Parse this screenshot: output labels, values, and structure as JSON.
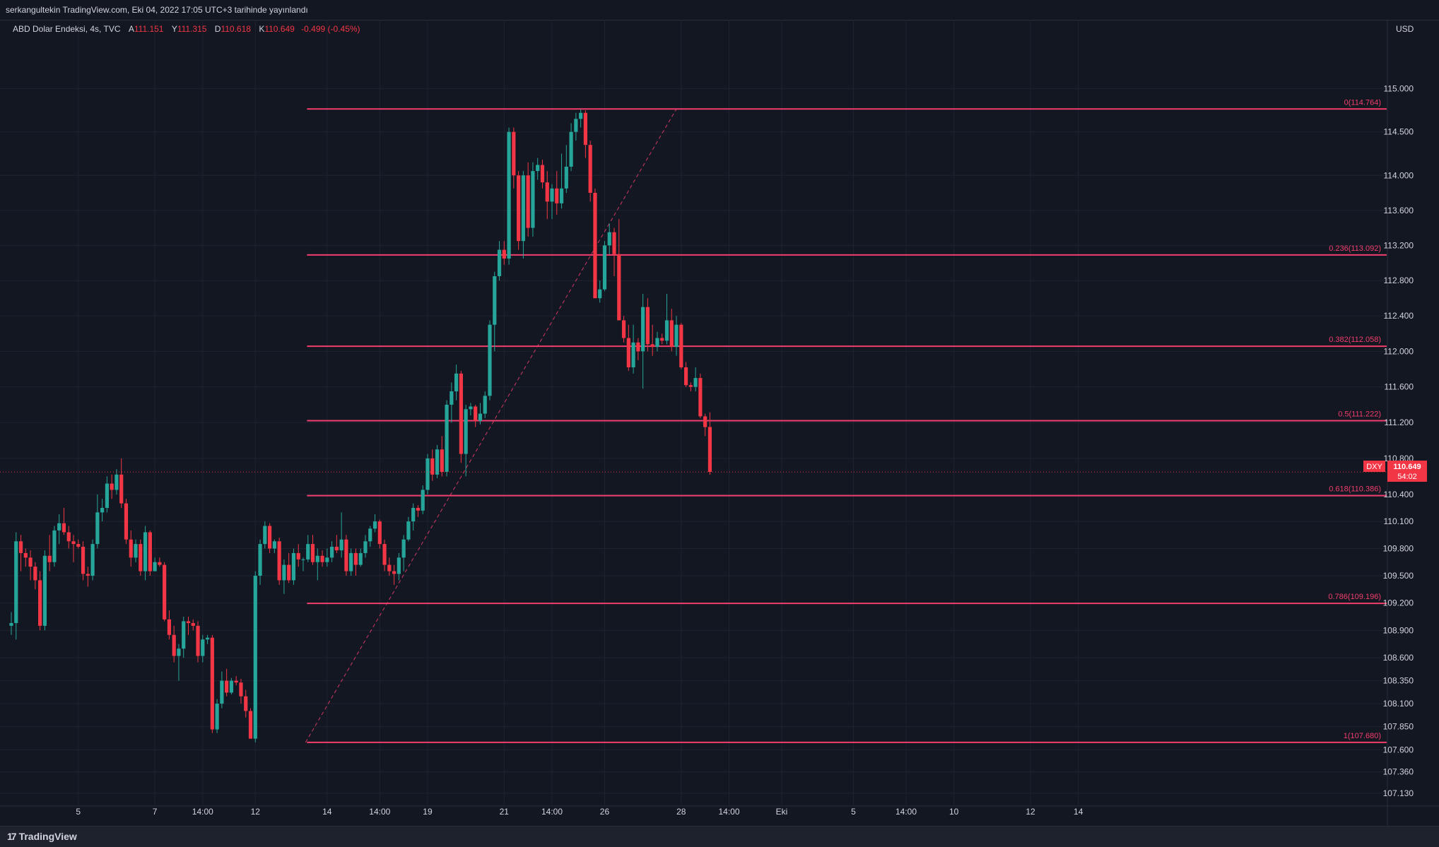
{
  "header": {
    "publication": "serkangultekin TradingView.com, Eki 04, 2022 17:05 UTC+3 tarihinde yayınlandı"
  },
  "legend": {
    "symbol": "ABD Dolar Endeksi, 4s, TVC",
    "open_label": "A",
    "open": "111.151",
    "high_label": "Y",
    "high": "111.315",
    "low_label": "D",
    "low": "110.618",
    "close_label": "K",
    "close": "110.649",
    "change": "-0.499 (-0.45%)"
  },
  "currency": "USD",
  "price_tag": {
    "ticker": "DXY",
    "price": "110.649",
    "countdown": "54:02"
  },
  "footer": {
    "brand": "TradingView",
    "logo_icon": "tradingview-logo-icon"
  },
  "colors": {
    "background": "#131722",
    "up": "#26a69a",
    "down": "#f23645",
    "fib": "#f23e6d",
    "grid": "#1f2330"
  },
  "chart_data": {
    "type": "candlestick",
    "title": "ABD Dolar Endeksi",
    "timeframe": "4s",
    "ylim": [
      107.0,
      115.7
    ],
    "y_scale": "log",
    "grid": true,
    "y_ticks": [
      "115.000",
      "114.500",
      "114.000",
      "113.600",
      "113.200",
      "112.800",
      "112.400",
      "112.000",
      "111.600",
      "111.200",
      "110.800",
      "110.400",
      "110.100",
      "109.800",
      "109.500",
      "109.200",
      "108.900",
      "108.600",
      "108.350",
      "108.100",
      "107.850",
      "107.600",
      "107.360",
      "107.130"
    ],
    "x_ticks": [
      {
        "i": 14,
        "label": "5"
      },
      {
        "i": 30,
        "label": "7"
      },
      {
        "i": 40,
        "label": "14:00"
      },
      {
        "i": 51,
        "label": "12"
      },
      {
        "i": 66,
        "label": "14"
      },
      {
        "i": 77,
        "label": "14:00"
      },
      {
        "i": 87,
        "label": "19"
      },
      {
        "i": 103,
        "label": "21"
      },
      {
        "i": 113,
        "label": "14:00"
      },
      {
        "i": 124,
        "label": "26"
      },
      {
        "i": 140,
        "label": "28"
      },
      {
        "i": 150,
        "label": "14:00"
      },
      {
        "i": 161,
        "label": "Eki"
      },
      {
        "i": 176,
        "label": "5"
      },
      {
        "i": 187,
        "label": "14:00"
      },
      {
        "i": 197,
        "label": "10"
      },
      {
        "i": 213,
        "label": "12"
      },
      {
        "i": 223,
        "label": "14"
      }
    ],
    "fibonacci": {
      "from_index": 61.5,
      "to_index": 139,
      "high": 114.764,
      "low": 107.68,
      "levels": [
        {
          "ratio": "0",
          "price": 114.764
        },
        {
          "ratio": "0.236",
          "price": 113.092
        },
        {
          "ratio": "0.382",
          "price": 112.058
        },
        {
          "ratio": "0.5",
          "price": 111.222
        },
        {
          "ratio": "0.618",
          "price": 110.386
        },
        {
          "ratio": "0.786",
          "price": 109.196
        },
        {
          "ratio": "1",
          "price": 107.68
        }
      ]
    },
    "ohlc": [
      [
        108.95,
        109.1,
        108.85,
        108.98
      ],
      [
        108.98,
        109.98,
        108.8,
        109.88
      ],
      [
        109.88,
        109.95,
        109.55,
        109.75
      ],
      [
        109.75,
        109.8,
        109.6,
        109.7
      ],
      [
        109.7,
        109.78,
        109.45,
        109.6
      ],
      [
        109.6,
        109.65,
        109.35,
        109.45
      ],
      [
        109.45,
        109.55,
        108.9,
        108.95
      ],
      [
        108.95,
        109.78,
        108.9,
        109.72
      ],
      [
        109.72,
        109.95,
        109.55,
        109.65
      ],
      [
        109.65,
        110.05,
        109.6,
        110.0
      ],
      [
        110.0,
        110.18,
        109.85,
        110.08
      ],
      [
        110.08,
        110.25,
        109.95,
        109.98
      ],
      [
        109.98,
        110.05,
        109.8,
        109.88
      ],
      [
        109.88,
        109.95,
        109.65,
        109.85
      ],
      [
        109.85,
        109.9,
        109.8,
        109.82
      ],
      [
        109.82,
        109.88,
        109.45,
        109.52
      ],
      [
        109.52,
        109.6,
        109.38,
        109.5
      ],
      [
        109.5,
        109.9,
        109.45,
        109.85
      ],
      [
        109.85,
        110.4,
        109.8,
        110.2
      ],
      [
        110.2,
        110.35,
        110.1,
        110.25
      ],
      [
        110.25,
        110.6,
        110.2,
        110.52
      ],
      [
        110.52,
        110.62,
        110.35,
        110.45
      ],
      [
        110.45,
        110.68,
        110.4,
        110.62
      ],
      [
        110.62,
        110.8,
        110.25,
        110.3
      ],
      [
        110.3,
        110.35,
        109.85,
        109.9
      ],
      [
        109.9,
        110.0,
        109.6,
        109.7
      ],
      [
        109.7,
        109.9,
        109.65,
        109.85
      ],
      [
        109.85,
        109.9,
        109.5,
        109.55
      ],
      [
        109.55,
        110.05,
        109.45,
        109.98
      ],
      [
        109.98,
        110.0,
        109.5,
        109.55
      ],
      [
        109.55,
        109.7,
        109.55,
        109.65
      ],
      [
        109.65,
        109.7,
        109.6,
        109.62
      ],
      [
        109.62,
        109.65,
        109.0,
        109.02
      ],
      [
        109.02,
        109.12,
        108.8,
        108.85
      ],
      [
        108.85,
        108.95,
        108.55,
        108.62
      ],
      [
        108.62,
        108.75,
        108.35,
        108.7
      ],
      [
        108.7,
        109.05,
        108.6,
        109.0
      ],
      [
        109.0,
        109.05,
        108.85,
        108.98
      ],
      [
        108.98,
        109.02,
        108.9,
        108.95
      ],
      [
        108.95,
        109.0,
        108.55,
        108.62
      ],
      [
        108.62,
        108.85,
        108.55,
        108.8
      ],
      [
        108.8,
        108.85,
        108.75,
        108.82
      ],
      [
        108.82,
        108.85,
        107.78,
        107.82
      ],
      [
        107.82,
        108.15,
        107.78,
        108.1
      ],
      [
        108.1,
        108.45,
        108.05,
        108.35
      ],
      [
        108.35,
        108.48,
        108.18,
        108.22
      ],
      [
        108.22,
        108.38,
        108.2,
        108.35
      ],
      [
        108.35,
        108.4,
        108.3,
        108.33
      ],
      [
        108.33,
        108.37,
        108.1,
        108.18
      ],
      [
        108.18,
        108.25,
        107.95,
        108.02
      ],
      [
        108.02,
        108.05,
        107.72,
        107.72
      ],
      [
        107.72,
        109.55,
        107.68,
        109.5
      ],
      [
        109.5,
        109.9,
        109.4,
        109.85
      ],
      [
        109.85,
        110.1,
        109.8,
        110.05
      ],
      [
        110.05,
        110.08,
        109.75,
        109.8
      ],
      [
        109.8,
        109.9,
        109.75,
        109.88
      ],
      [
        109.88,
        109.92,
        109.4,
        109.45
      ],
      [
        109.45,
        109.68,
        109.3,
        109.62
      ],
      [
        109.62,
        109.75,
        109.42,
        109.45
      ],
      [
        109.45,
        109.8,
        109.4,
        109.75
      ],
      [
        109.75,
        109.85,
        109.6,
        109.68
      ],
      [
        109.68,
        109.7,
        109.55,
        109.68
      ],
      [
        109.68,
        109.95,
        109.65,
        109.85
      ],
      [
        109.85,
        109.95,
        109.62,
        109.65
      ],
      [
        109.65,
        109.8,
        109.45,
        109.72
      ],
      [
        109.72,
        109.78,
        109.6,
        109.65
      ],
      [
        109.65,
        109.8,
        109.6,
        109.7
      ],
      [
        109.7,
        109.88,
        109.65,
        109.82
      ],
      [
        109.82,
        109.95,
        109.75,
        109.78
      ],
      [
        109.78,
        110.2,
        109.7,
        109.9
      ],
      [
        109.9,
        109.95,
        109.5,
        109.55
      ],
      [
        109.55,
        109.8,
        109.5,
        109.75
      ],
      [
        109.75,
        109.8,
        109.5,
        109.62
      ],
      [
        109.62,
        109.8,
        109.6,
        109.75
      ],
      [
        109.75,
        109.95,
        109.7,
        109.88
      ],
      [
        109.88,
        110.05,
        109.82,
        110.02
      ],
      [
        110.02,
        110.18,
        109.98,
        110.1
      ],
      [
        110.1,
        110.12,
        109.8,
        109.85
      ],
      [
        109.85,
        109.9,
        109.55,
        109.62
      ],
      [
        109.62,
        109.7,
        109.5,
        109.55
      ],
      [
        109.55,
        109.62,
        109.4,
        109.52
      ],
      [
        109.52,
        109.75,
        109.45,
        109.7
      ],
      [
        109.7,
        109.95,
        109.55,
        109.9
      ],
      [
        109.9,
        110.15,
        109.88,
        110.1
      ],
      [
        110.1,
        110.3,
        110.0,
        110.25
      ],
      [
        110.25,
        110.28,
        110.15,
        110.22
      ],
      [
        110.22,
        110.5,
        110.18,
        110.45
      ],
      [
        110.45,
        110.85,
        110.4,
        110.8
      ],
      [
        110.8,
        110.9,
        110.55,
        110.62
      ],
      [
        110.62,
        110.95,
        110.58,
        110.9
      ],
      [
        110.9,
        111.05,
        110.6,
        110.65
      ],
      [
        110.65,
        111.45,
        110.6,
        111.4
      ],
      [
        111.4,
        111.65,
        111.2,
        111.55
      ],
      [
        111.55,
        111.85,
        111.45,
        111.75
      ],
      [
        111.75,
        111.78,
        110.75,
        110.85
      ],
      [
        110.85,
        111.4,
        110.6,
        111.35
      ],
      [
        111.35,
        111.42,
        111.28,
        111.38
      ],
      [
        111.38,
        111.4,
        111.15,
        111.22
      ],
      [
        111.22,
        111.42,
        111.18,
        111.3
      ],
      [
        111.3,
        111.55,
        111.25,
        111.5
      ],
      [
        111.5,
        112.35,
        111.45,
        112.3
      ],
      [
        112.3,
        112.9,
        112.0,
        112.85
      ],
      [
        112.85,
        113.25,
        112.8,
        113.15
      ],
      [
        113.15,
        113.25,
        112.98,
        113.05
      ],
      [
        113.05,
        114.55,
        112.98,
        114.5
      ],
      [
        114.5,
        114.55,
        113.85,
        114.0
      ],
      [
        114.0,
        114.05,
        113.15,
        113.25
      ],
      [
        113.25,
        114.05,
        113.05,
        114.0
      ],
      [
        114.0,
        114.15,
        113.3,
        113.4
      ],
      [
        113.4,
        114.15,
        113.3,
        114.05
      ],
      [
        114.05,
        114.2,
        113.95,
        114.12
      ],
      [
        114.12,
        114.18,
        113.85,
        113.92
      ],
      [
        113.92,
        114.05,
        113.5,
        113.7
      ],
      [
        113.7,
        113.9,
        113.5,
        113.85
      ],
      [
        113.85,
        114.05,
        113.55,
        113.68
      ],
      [
        113.68,
        114.25,
        113.62,
        113.85
      ],
      [
        113.85,
        114.35,
        113.8,
        114.1
      ],
      [
        114.1,
        114.6,
        114.05,
        114.5
      ],
      [
        114.5,
        114.72,
        114.4,
        114.65
      ],
      [
        114.65,
        114.76,
        114.55,
        114.72
      ],
      [
        114.72,
        114.75,
        114.2,
        114.35
      ],
      [
        114.35,
        114.4,
        113.7,
        113.8
      ],
      [
        113.8,
        113.85,
        112.6,
        112.6
      ],
      [
        112.6,
        112.8,
        112.55,
        112.7
      ],
      [
        112.7,
        113.25,
        112.68,
        113.2
      ],
      [
        113.2,
        113.45,
        113.1,
        113.35
      ],
      [
        113.35,
        113.4,
        112.85,
        113.1
      ],
      [
        113.1,
        113.5,
        112.35,
        112.35
      ],
      [
        112.35,
        112.4,
        112.1,
        112.15
      ],
      [
        112.15,
        112.3,
        111.78,
        111.82
      ],
      [
        111.82,
        112.3,
        111.75,
        112.1
      ],
      [
        112.1,
        112.15,
        111.9,
        112.0
      ],
      [
        112.0,
        112.65,
        111.58,
        112.5
      ],
      [
        112.5,
        112.6,
        112.0,
        112.08
      ],
      [
        112.08,
        112.3,
        111.95,
        112.05
      ],
      [
        112.05,
        112.22,
        112.0,
        112.15
      ],
      [
        112.15,
        112.2,
        112.08,
        112.12
      ],
      [
        112.12,
        112.65,
        112.08,
        112.35
      ],
      [
        112.35,
        112.48,
        112.0,
        112.05
      ],
      [
        112.05,
        112.4,
        111.95,
        112.3
      ],
      [
        112.3,
        112.32,
        111.8,
        111.82
      ],
      [
        111.82,
        111.88,
        111.6,
        111.62
      ],
      [
        111.62,
        111.65,
        111.55,
        111.6
      ],
      [
        111.6,
        111.82,
        111.55,
        111.7
      ],
      [
        111.7,
        111.75,
        111.25,
        111.27
      ],
      [
        111.27,
        111.3,
        111.05,
        111.15
      ],
      [
        111.151,
        111.315,
        110.618,
        110.649
      ]
    ]
  }
}
